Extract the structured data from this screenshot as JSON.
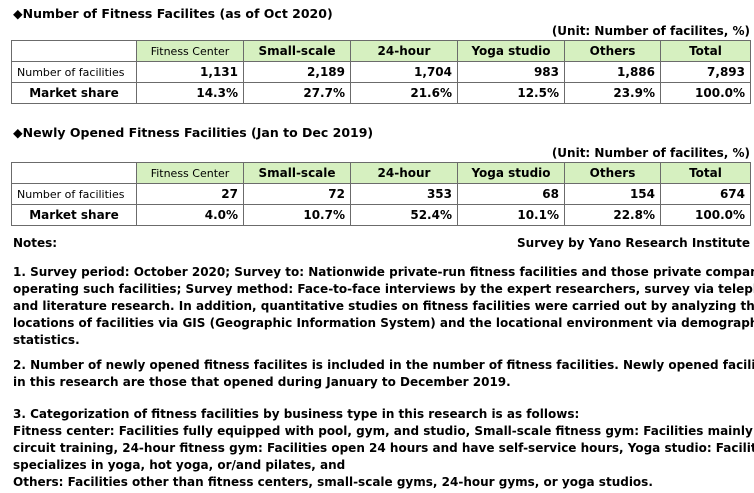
{
  "table1": {
    "title": "◆Number of Fitness Facilites (as of Oct 2020)",
    "unit": "(Unit: Number of facilites, %)",
    "headers": [
      "Fitness Center",
      "Small-scale",
      "24-hour",
      "Yoga studio",
      "Others",
      "Total"
    ],
    "rows": [
      {
        "label": "Number of facilities",
        "values": [
          "1,131",
          "2,189",
          "1,704",
          "983",
          "1,886",
          "7,893"
        ]
      },
      {
        "label": "Market share",
        "values": [
          "14.3%",
          "27.7%",
          "21.6%",
          "12.5%",
          "23.9%",
          "100.0%"
        ]
      }
    ]
  },
  "table2": {
    "title": "◆Newly Opened Fitness Facilities (Jan to Dec 2019)",
    "unit": "(Unit: Number of facilites, %)",
    "headers": [
      "Fitness Center",
      "Small-scale",
      "24-hour",
      "Yoga studio",
      "Others",
      "Total"
    ],
    "rows": [
      {
        "label": "Number of facilities",
        "values": [
          "27",
          "72",
          "353",
          "68",
          "154",
          "674"
        ]
      },
      {
        "label": "Market share",
        "values": [
          "4.0%",
          "10.7%",
          "52.4%",
          "10.1%",
          "22.8%",
          "100.0%"
        ]
      }
    ]
  },
  "notes": {
    "title": "Notes:",
    "source": "Survey by Yano Research Institute",
    "note1": [
      "1. Survey period: October 2020; Survey to: Nationwide private-run fitness facilities and those private companies",
      "operating such facilities; Survey method: Face-to-face interviews by the expert researchers, survey via telephone,",
      "and literature research. In addition, quantitative studies on fitness facilities were carried out by analyzing the",
      "locations of facilities via GIS (Geographic Information System) and the locational environment via demographic",
      "statistics."
    ],
    "note2": [
      "2. Number of newly opened fitness facilites is included in the number of fitness facilities. Newly opened facilities",
      "in this research are those that opened during January to December 2019."
    ],
    "note3": [
      "3. Categorization of fitness facilities by business type in this research is as follows:",
      "Fitness center: Facilities fully equipped with pool, gym, and studio, Small-scale fitness gym: Facilities mainly for",
      "circuit training, 24-hour fitness gym: Facilities open 24 hours and have self-service hours, Yoga studio: Facilities",
      "specializes in yoga, hot yoga, or/and pilates, and",
      "Others: Facilities other than fitness centers, small-scale gyms, 24-hour gyms, or yoga studios."
    ]
  }
}
